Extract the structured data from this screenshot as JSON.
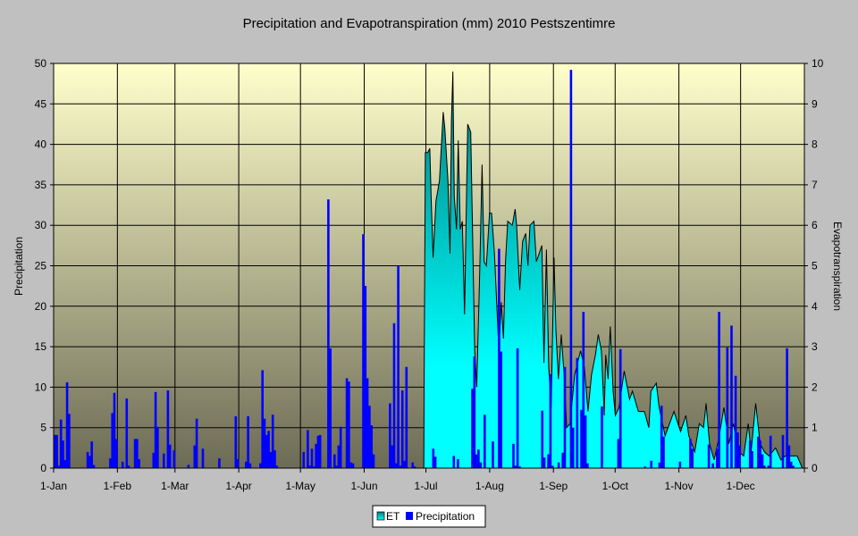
{
  "chart_data": {
    "type": "bar+area",
    "title": "Precipitation and Evapotranspiration (mm) 2010 Pestszentimre",
    "ylabel": "Precipitation",
    "y2label": "Evapotranspiration",
    "ylim": [
      0,
      50
    ],
    "y2lim": [
      0,
      10
    ],
    "yticks": [
      "0",
      "5",
      "10",
      "15",
      "20",
      "25",
      "30",
      "35",
      "40",
      "45",
      "50"
    ],
    "y2ticks": [
      "0",
      "1",
      "2",
      "3",
      "4",
      "5",
      "6",
      "7",
      "8",
      "9",
      "10"
    ],
    "x_unit": "day of year (0 = 1-Jan)",
    "xlim": [
      0,
      365
    ],
    "xticks": [
      {
        "day": 0,
        "label": "1-Jan"
      },
      {
        "day": 31,
        "label": "1-Feb"
      },
      {
        "day": 59,
        "label": "1-Mar"
      },
      {
        "day": 90,
        "label": "1-Apr"
      },
      {
        "day": 120,
        "label": "1-May"
      },
      {
        "day": 151,
        "label": "1-Jun"
      },
      {
        "day": 181,
        "label": "1-Jul"
      },
      {
        "day": 212,
        "label": "1-Aug"
      },
      {
        "day": 243,
        "label": "1-Sep"
      },
      {
        "day": 273,
        "label": "1-Oct"
      },
      {
        "day": 304,
        "label": "1-Nov"
      },
      {
        "day": 334,
        "label": "1-Dec"
      }
    ],
    "grid": true,
    "legend": {
      "placement": "bottom",
      "entries": [
        "ET",
        "Precipitation"
      ]
    },
    "colors": {
      "precip": "#0000ff",
      "et_top": "#0a7a74",
      "et_mid": "#00c8c8",
      "et_low": "#00ffff",
      "plot_top": "#ffffcc",
      "plot_bottom": "#6c6b55",
      "page": "#c0c0c0"
    },
    "series": [
      {
        "name": "Precipitation",
        "axis": "left",
        "type": "bar",
        "points": [
          [
            0,
            4.1
          ],
          [
            1,
            4.1
          ],
          [
            2,
            0.3
          ],
          [
            3,
            6.0
          ],
          [
            4,
            3.4
          ],
          [
            5,
            1.0
          ],
          [
            6,
            10.6
          ],
          [
            7,
            6.7
          ],
          [
            16,
            2.0
          ],
          [
            17,
            1.5
          ],
          [
            18,
            3.3
          ],
          [
            19,
            0.4
          ],
          [
            27,
            1.2
          ],
          [
            28,
            6.8
          ],
          [
            29,
            9.3
          ],
          [
            30,
            3.6
          ],
          [
            33,
            0.8
          ],
          [
            35,
            8.6
          ],
          [
            36,
            0.3
          ],
          [
            39,
            3.6
          ],
          [
            40,
            3.6
          ],
          [
            41,
            1.1
          ],
          [
            48,
            1.9
          ],
          [
            49,
            9.4
          ],
          [
            50,
            5.1
          ],
          [
            53,
            1.8
          ],
          [
            55,
            9.6
          ],
          [
            56,
            2.9
          ],
          [
            58,
            2.2
          ],
          [
            65,
            0.4
          ],
          [
            68,
            2.8
          ],
          [
            69,
            6.1
          ],
          [
            72,
            2.4
          ],
          [
            80,
            1.2
          ],
          [
            88,
            6.4
          ],
          [
            89,
            1.1
          ],
          [
            93,
            0.8
          ],
          [
            94,
            6.4
          ],
          [
            95,
            0.6
          ],
          [
            100,
            0.6
          ],
          [
            101,
            12.1
          ],
          [
            102,
            6.1
          ],
          [
            103,
            4.1
          ],
          [
            104,
            4.6
          ],
          [
            105,
            2.0
          ],
          [
            106,
            6.6
          ],
          [
            107,
            2.2
          ],
          [
            108,
            0.3
          ],
          [
            121,
            2.0
          ],
          [
            123,
            4.7
          ],
          [
            124,
            0.3
          ],
          [
            125,
            2.4
          ],
          [
            126,
            0.2
          ],
          [
            127,
            3.0
          ],
          [
            128,
            4.0
          ],
          [
            129,
            4.1
          ],
          [
            133,
            33.2
          ],
          [
            134,
            14.8
          ],
          [
            136,
            1.7
          ],
          [
            137,
            0.3
          ],
          [
            138,
            2.8
          ],
          [
            139,
            5.1
          ],
          [
            142,
            11.1
          ],
          [
            143,
            10.7
          ],
          [
            144,
            0.7
          ],
          [
            145,
            0.6
          ],
          [
            150,
            28.9
          ],
          [
            151,
            22.5
          ],
          [
            152,
            11.1
          ],
          [
            153,
            7.7
          ],
          [
            154,
            5.3
          ],
          [
            155,
            1.7
          ],
          [
            163,
            8.0
          ],
          [
            164,
            2.8
          ],
          [
            165,
            17.9
          ],
          [
            166,
            0.6
          ],
          [
            167,
            25.0
          ],
          [
            168,
            0.3
          ],
          [
            169,
            9.6
          ],
          [
            170,
            0.9
          ],
          [
            171,
            12.5
          ],
          [
            174,
            0.7
          ],
          [
            175,
            0.2
          ],
          [
            184,
            2.4
          ],
          [
            185,
            1.4
          ],
          [
            194,
            1.5
          ],
          [
            196,
            1.1
          ],
          [
            203,
            9.8
          ],
          [
            204,
            13.8
          ],
          [
            205,
            1.7
          ],
          [
            206,
            2.3
          ],
          [
            207,
            0.7
          ],
          [
            209,
            6.6
          ],
          [
            213,
            3.3
          ],
          [
            216,
            27.1
          ],
          [
            217,
            14.4
          ],
          [
            223,
            3.0
          ],
          [
            224,
            0.3
          ],
          [
            225,
            14.8
          ],
          [
            226,
            0.2
          ],
          [
            237,
            7.1
          ],
          [
            238,
            1.3
          ],
          [
            240,
            1.7
          ],
          [
            241,
            11.6
          ],
          [
            242,
            0.3
          ],
          [
            245,
            0.7
          ],
          [
            247,
            1.9
          ],
          [
            248,
            12.5
          ],
          [
            251,
            49.2
          ],
          [
            252,
            5.0
          ],
          [
            254,
            13.6
          ],
          [
            256,
            7.2
          ],
          [
            257,
            19.3
          ],
          [
            258,
            6.5
          ],
          [
            259,
            0.6
          ],
          [
            266,
            7.6
          ],
          [
            274,
            3.6
          ],
          [
            275,
            14.7
          ],
          [
            287,
            0.2
          ],
          [
            290,
            0.9
          ],
          [
            294,
            0.7
          ],
          [
            295,
            7.7
          ],
          [
            296,
            3.9
          ],
          [
            304,
            0.8
          ],
          [
            309,
            3.6
          ],
          [
            310,
            2.4
          ],
          [
            318,
            2.9
          ],
          [
            320,
            0.6
          ],
          [
            322,
            2.4
          ],
          [
            323,
            19.3
          ],
          [
            327,
            14.9
          ],
          [
            329,
            17.6
          ],
          [
            331,
            11.4
          ],
          [
            332,
            4.4
          ],
          [
            333,
            2.8
          ],
          [
            338,
            3.4
          ],
          [
            339,
            2.1
          ],
          [
            342,
            3.9
          ],
          [
            343,
            3.4
          ],
          [
            344,
            1.7
          ],
          [
            345,
            0.3
          ],
          [
            347,
            0.3
          ],
          [
            348,
            4.0
          ],
          [
            354,
            4.1
          ],
          [
            356,
            14.8
          ],
          [
            357,
            2.8
          ],
          [
            358,
            0.8
          ],
          [
            359,
            0.3
          ]
        ]
      },
      {
        "name": "ET",
        "axis": "right",
        "type": "area",
        "points": [
          [
            180,
            0
          ],
          [
            180.1,
            1.9
          ],
          [
            180.7,
            7.8
          ],
          [
            181.9,
            7.8
          ],
          [
            182.9,
            7.9
          ],
          [
            183.6,
            6.6
          ],
          [
            184.5,
            5.2
          ],
          [
            185.9,
            6.6
          ],
          [
            187.6,
            7.1
          ],
          [
            189.4,
            8.8
          ],
          [
            190.2,
            8.4
          ],
          [
            191.7,
            7.1
          ],
          [
            192.7,
            5.3
          ],
          [
            193.4,
            8.6
          ],
          [
            194.1,
            9.8
          ],
          [
            194.8,
            6.7
          ],
          [
            195.9,
            5.9
          ],
          [
            196.7,
            8.1
          ],
          [
            197.7,
            5.9
          ],
          [
            198.7,
            6.1
          ],
          [
            199.8,
            3.8
          ],
          [
            201.3,
            8.5
          ],
          [
            202.8,
            8.3
          ],
          [
            203.8,
            5.5
          ],
          [
            204.7,
            2.9
          ],
          [
            205.7,
            2.0
          ],
          [
            207.1,
            4.7
          ],
          [
            208.3,
            7.5
          ],
          [
            209.3,
            5.1
          ],
          [
            210.4,
            5.0
          ],
          [
            211.9,
            6.3
          ],
          [
            212.9,
            6.3
          ],
          [
            214.3,
            5.3
          ],
          [
            216.5,
            2.9
          ],
          [
            217.6,
            4.1
          ],
          [
            218.7,
            3.2
          ],
          [
            219.7,
            5.1
          ],
          [
            220.8,
            6.1
          ],
          [
            223,
            6.0
          ],
          [
            224.4,
            6.4
          ],
          [
            225.1,
            6.0
          ],
          [
            226.6,
            4.4
          ],
          [
            228,
            5.6
          ],
          [
            229.5,
            5.8
          ],
          [
            230.6,
            5.0
          ],
          [
            231.6,
            6.0
          ],
          [
            233.5,
            6.1
          ],
          [
            234.7,
            5.1
          ],
          [
            237.4,
            5.5
          ],
          [
            238.4,
            2.6
          ],
          [
            239.6,
            5.4
          ],
          [
            240.7,
            2.5
          ],
          [
            241.9,
            1.5
          ],
          [
            243.3,
            5.2
          ],
          [
            244.2,
            3.4
          ],
          [
            245.4,
            2.2
          ],
          [
            246.8,
            3.3
          ],
          [
            248.2,
            2.3
          ],
          [
            249.4,
            1.0
          ],
          [
            251.1,
            1.1
          ],
          [
            253.3,
            2.3
          ],
          [
            256.2,
            2.9
          ],
          [
            258,
            2.5
          ],
          [
            259.8,
            1.4
          ],
          [
            261.5,
            2.3
          ],
          [
            263.4,
            2.8
          ],
          [
            264.8,
            3.3
          ],
          [
            266.3,
            2.9
          ],
          [
            267.7,
            1.3
          ],
          [
            268.4,
            2.8
          ],
          [
            269.6,
            2.2
          ],
          [
            270.6,
            3.5
          ],
          [
            272,
            1.9
          ],
          [
            273.1,
            1.3
          ],
          [
            274.9,
            1.5
          ],
          [
            277.4,
            2.4
          ],
          [
            280,
            1.7
          ],
          [
            281.4,
            1.9
          ],
          [
            284.3,
            1.4
          ],
          [
            287.2,
            1.4
          ],
          [
            289.4,
            1.0
          ],
          [
            290.4,
            1.9
          ],
          [
            293,
            2.1
          ],
          [
            294.4,
            1.5
          ],
          [
            297.3,
            0.8
          ],
          [
            301.6,
            1.4
          ],
          [
            304.8,
            0.9
          ],
          [
            307.4,
            1.3
          ],
          [
            308.8,
            0.8
          ],
          [
            311.7,
            0.4
          ],
          [
            313.9,
            1.1
          ],
          [
            316,
            1.0
          ],
          [
            317.2,
            1.6
          ],
          [
            318.9,
            0.6
          ],
          [
            321.1,
            0.2
          ],
          [
            323.3,
            0.7
          ],
          [
            325.9,
            1.5
          ],
          [
            328.3,
            0.6
          ],
          [
            330.5,
            1.1
          ],
          [
            333.1,
            0.4
          ],
          [
            335.5,
            0.3
          ],
          [
            337.7,
            1.1
          ],
          [
            339.1,
            0.4
          ],
          [
            341.3,
            1.6
          ],
          [
            343.5,
            0.6
          ],
          [
            345.6,
            0.4
          ],
          [
            347.8,
            0.3
          ],
          [
            351,
            0.5
          ],
          [
            353.6,
            0.2
          ],
          [
            355.7,
            0.3
          ],
          [
            359.3,
            0.3
          ],
          [
            361.5,
            0.3
          ],
          [
            364,
            0
          ]
        ]
      }
    ]
  }
}
